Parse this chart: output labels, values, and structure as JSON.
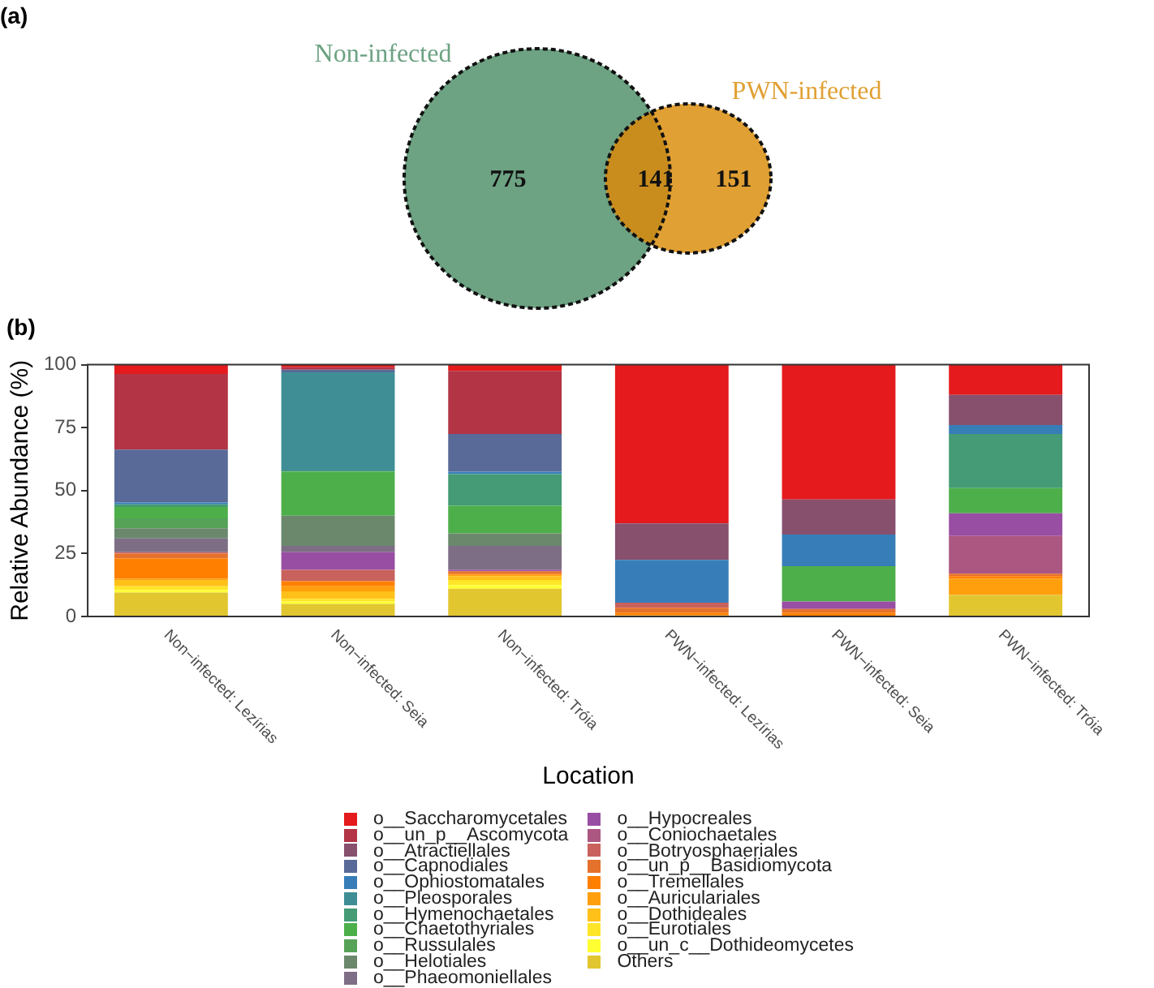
{
  "chart_data": [
    {
      "type": "other",
      "title": "(a)",
      "categories": [
        "Non-infected",
        null,
        "PWN-infected"
      ],
      "values": [
        775,
        141,
        151
      ],
      "colors": [
        "#6da283",
        "#c98d1e",
        "#e1a033"
      ],
      "data_labels": true
    },
    {
      "type": "bar",
      "title": "(b)",
      "xlabel": "Location",
      "ylabel": "Relative Abundance (%)",
      "stacked": true,
      "ylim": [
        0,
        100
      ],
      "yticks": [
        0,
        25,
        50,
        75,
        100
      ],
      "grid": false,
      "legend": "bottom",
      "categories": [
        "Non−infected: Lezírias",
        "Non−infected: Seia",
        "Non−infected: Tróia",
        "PWN−infected: Lezírias",
        "PWN−infected: Seia",
        "PWN−infected: Tróia"
      ],
      "series": [
        {
          "name": "Others",
          "color": "#e2c62f",
          "values": [
            9.5,
            5,
            11,
            0,
            0,
            8.5
          ]
        },
        {
          "name": "o__un_c__Dothideomycetes",
          "color": "#ffff33",
          "values": [
            1,
            1,
            1.5,
            0,
            0,
            0
          ]
        },
        {
          "name": "o__Eurotiales",
          "color": "#ffe528",
          "values": [
            1.5,
            1,
            2,
            0,
            0,
            0
          ]
        },
        {
          "name": "o__Dothideales",
          "color": "#ffc01a",
          "values": [
            2.5,
            3,
            1.5,
            0,
            0,
            0
          ]
        },
        {
          "name": "o__Auriculariales",
          "color": "#ff9f0d",
          "values": [
            0.5,
            2,
            0.5,
            0.5,
            0,
            6.5
          ]
        },
        {
          "name": "o__Tremellales",
          "color": "#ff7f00",
          "values": [
            8,
            2,
            0.5,
            1,
            1.5,
            1
          ]
        },
        {
          "name": "o__un_p__Basidiomycota",
          "color": "#e4712c",
          "values": [
            2,
            0,
            1,
            2,
            1.5,
            1
          ]
        },
        {
          "name": "o__Botryosphaeriales",
          "color": "#c9625c",
          "values": [
            0.5,
            4.5,
            0,
            2,
            0,
            0
          ]
        },
        {
          "name": "o__Coniochaetales",
          "color": "#ac5782",
          "values": [
            0,
            0,
            0,
            0,
            0,
            15
          ]
        },
        {
          "name": "o__Hypocreales",
          "color": "#984ea3",
          "values": [
            0,
            7,
            0.5,
            0,
            3,
            9
          ]
        },
        {
          "name": "o__Phaeomoniellales",
          "color": "#7e6e85",
          "values": [
            5.5,
            2.5,
            9.5,
            0,
            0,
            0
          ]
        },
        {
          "name": "o__Helotiales",
          "color": "#6b886d",
          "values": [
            4,
            12,
            5,
            0,
            0,
            0
          ]
        },
        {
          "name": "o__Russulales",
          "color": "#56a257",
          "values": [
            4,
            0,
            0,
            0,
            0,
            0
          ]
        },
        {
          "name": "o__Chaetothyriales",
          "color": "#4daf4a",
          "values": [
            4.5,
            17.5,
            11,
            0,
            14,
            10
          ]
        },
        {
          "name": "o__Hymenochaetales",
          "color": "#449b75",
          "values": [
            1,
            0.5,
            12.5,
            0,
            0,
            21.5
          ]
        },
        {
          "name": "o__Pleosporales",
          "color": "#3f8e95",
          "values": [
            0,
            39,
            0,
            0,
            0,
            0
          ]
        },
        {
          "name": "o__Ophiostomatales",
          "color": "#377eb8",
          "values": [
            0.8,
            0,
            1,
            17,
            12.5,
            3.5
          ]
        },
        {
          "name": "o__Capnodiales",
          "color": "#596a98",
          "values": [
            21,
            1,
            15,
            0,
            0,
            0
          ]
        },
        {
          "name": "o__Atractiellales",
          "color": "#87506d",
          "values": [
            0,
            0,
            0,
            14.5,
            14,
            12
          ]
        },
        {
          "name": "o__un_p__Ascomycota",
          "color": "#b23445",
          "values": [
            30,
            1,
            25,
            0,
            0,
            0
          ]
        },
        {
          "name": "o__Saccharomycetales",
          "color": "#e41a1c",
          "values": [
            3.7,
            1,
            2.5,
            63,
            53.5,
            12
          ]
        }
      ]
    }
  ]
}
